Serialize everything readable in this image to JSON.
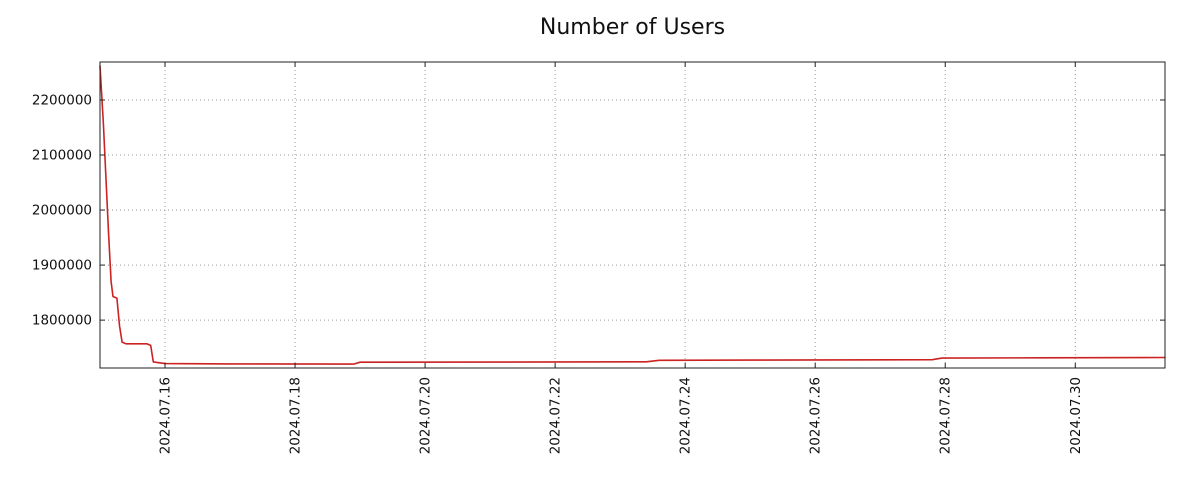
{
  "chart_data": {
    "type": "line",
    "title": "Number of Users",
    "xlabel": "",
    "ylabel": "",
    "legend": "none",
    "grid": {
      "style": "dotted",
      "color": "#9a9a9a"
    },
    "x_axis": {
      "unit": "date",
      "start_date": "2024-07-15",
      "tick_labels": [
        "2024.07.16",
        "2024.07.18",
        "2024.07.20",
        "2024.07.22",
        "2024.07.24",
        "2024.07.26",
        "2024.07.28",
        "2024.07.30"
      ],
      "tick_days": [
        1,
        3,
        5,
        7,
        9,
        11,
        13,
        15
      ],
      "xlim_days": [
        0,
        16.38
      ],
      "label_rotation_deg": 90
    },
    "y_axis": {
      "tick_labels": [
        "1800000",
        "1900000",
        "2000000",
        "2100000",
        "2200000"
      ],
      "tick_values": [
        1800000,
        1900000,
        2000000,
        2100000,
        2200000
      ],
      "ylim": [
        1713000,
        2269000
      ]
    },
    "series": [
      {
        "name": "Number of Users",
        "color": "#cc2222",
        "points_day_value": [
          [
            0.0,
            2262000
          ],
          [
            0.05,
            2160000
          ],
          [
            0.09,
            2060000
          ],
          [
            0.13,
            1960000
          ],
          [
            0.17,
            1870000
          ],
          [
            0.2,
            1843000
          ],
          [
            0.26,
            1840000
          ],
          [
            0.3,
            1790000
          ],
          [
            0.34,
            1760000
          ],
          [
            0.4,
            1757000
          ],
          [
            0.72,
            1757000
          ],
          [
            0.78,
            1754000
          ],
          [
            0.82,
            1724000
          ],
          [
            1.0,
            1721000
          ],
          [
            2.0,
            1720500
          ],
          [
            3.9,
            1720000
          ],
          [
            4.0,
            1723500
          ],
          [
            6.0,
            1723800
          ],
          [
            8.4,
            1724200
          ],
          [
            8.6,
            1727000
          ],
          [
            10.0,
            1727300
          ],
          [
            12.8,
            1728000
          ],
          [
            12.95,
            1731000
          ],
          [
            14.5,
            1731500
          ],
          [
            16.38,
            1732000
          ]
        ]
      }
    ]
  }
}
